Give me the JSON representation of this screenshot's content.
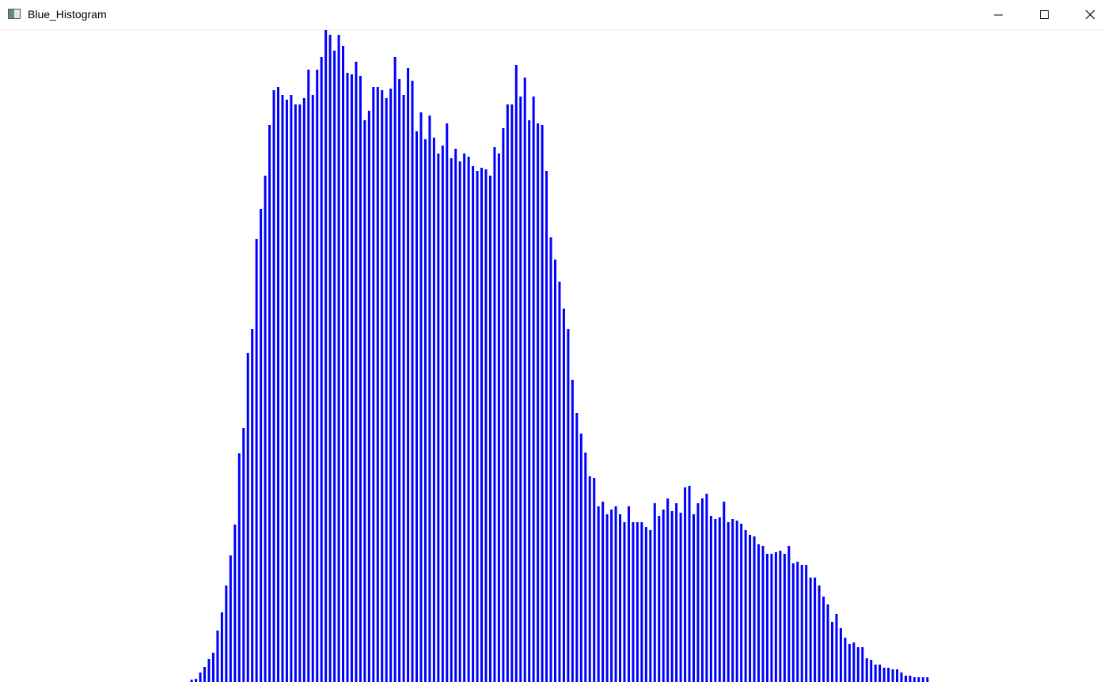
{
  "window": {
    "title": "Blue_Histogram"
  },
  "chart_data": {
    "type": "bar",
    "color": "#0000ff",
    "xlim": [
      0,
      256
    ],
    "ylim": [
      0,
      824
    ],
    "x": [
      44,
      45,
      46,
      47,
      48,
      49,
      50,
      51,
      52,
      53,
      54,
      55,
      56,
      57,
      58,
      59,
      60,
      61,
      62,
      63,
      64,
      65,
      66,
      67,
      68,
      69,
      70,
      71,
      72,
      73,
      74,
      75,
      76,
      77,
      78,
      79,
      80,
      81,
      82,
      83,
      84,
      85,
      86,
      87,
      88,
      89,
      90,
      91,
      92,
      93,
      94,
      95,
      96,
      97,
      98,
      99,
      100,
      101,
      102,
      103,
      104,
      105,
      106,
      107,
      108,
      109,
      110,
      111,
      112,
      113,
      114,
      115,
      116,
      117,
      118,
      119,
      120,
      121,
      122,
      123,
      124,
      125,
      126,
      127,
      128,
      129,
      130,
      131,
      132,
      133,
      134,
      135,
      136,
      137,
      138,
      139,
      140,
      141,
      142,
      143,
      144,
      145,
      146,
      147,
      148,
      149,
      150,
      151,
      152,
      153,
      154,
      155,
      156,
      157,
      158,
      159,
      160,
      161,
      162,
      163,
      164,
      165,
      166,
      167,
      168,
      169,
      170,
      171,
      172,
      173,
      174,
      175,
      176,
      177,
      178,
      179,
      180,
      181,
      182,
      183,
      184,
      185,
      186,
      187,
      188,
      189,
      190,
      191,
      192,
      193,
      194,
      195,
      196,
      197,
      198,
      199,
      200,
      201,
      202,
      203,
      204,
      205,
      206,
      207,
      208,
      209,
      210,
      211,
      212,
      213,
      214
    ],
    "values": [
      3,
      4,
      12,
      19,
      29,
      37,
      65,
      88,
      122,
      160,
      199,
      289,
      321,
      416,
      446,
      560,
      598,
      640,
      704,
      748,
      752,
      742,
      736,
      742,
      730,
      730,
      738,
      774,
      742,
      774,
      790,
      824,
      818,
      798,
      818,
      804,
      770,
      768,
      784,
      766,
      710,
      722,
      752,
      752,
      748,
      738,
      750,
      790,
      762,
      742,
      776,
      760,
      696,
      720,
      686,
      716,
      688,
      668,
      678,
      706,
      662,
      674,
      658,
      668,
      664,
      652,
      646,
      650,
      648,
      640,
      676,
      668,
      700,
      730,
      730,
      780,
      740,
      764,
      710,
      740,
      706,
      704,
      646,
      562,
      534,
      506,
      472,
      446,
      382,
      340,
      314,
      290,
      260,
      258,
      222,
      228,
      212,
      218,
      222,
      212,
      202,
      222,
      202,
      202,
      202,
      196,
      192,
      226,
      210,
      218,
      232,
      216,
      226,
      214,
      246,
      248,
      212,
      226,
      232,
      238,
      210,
      206,
      208,
      228,
      202,
      206,
      204,
      200,
      192,
      186,
      184,
      174,
      172,
      162,
      162,
      164,
      166,
      162,
      172,
      150,
      152,
      148,
      148,
      132,
      132,
      122,
      108,
      98,
      76,
      86,
      68,
      56,
      48,
      50,
      44,
      44,
      30,
      28,
      22,
      22,
      18,
      18,
      16,
      16,
      12,
      8,
      8,
      6,
      6,
      6,
      6
    ]
  }
}
